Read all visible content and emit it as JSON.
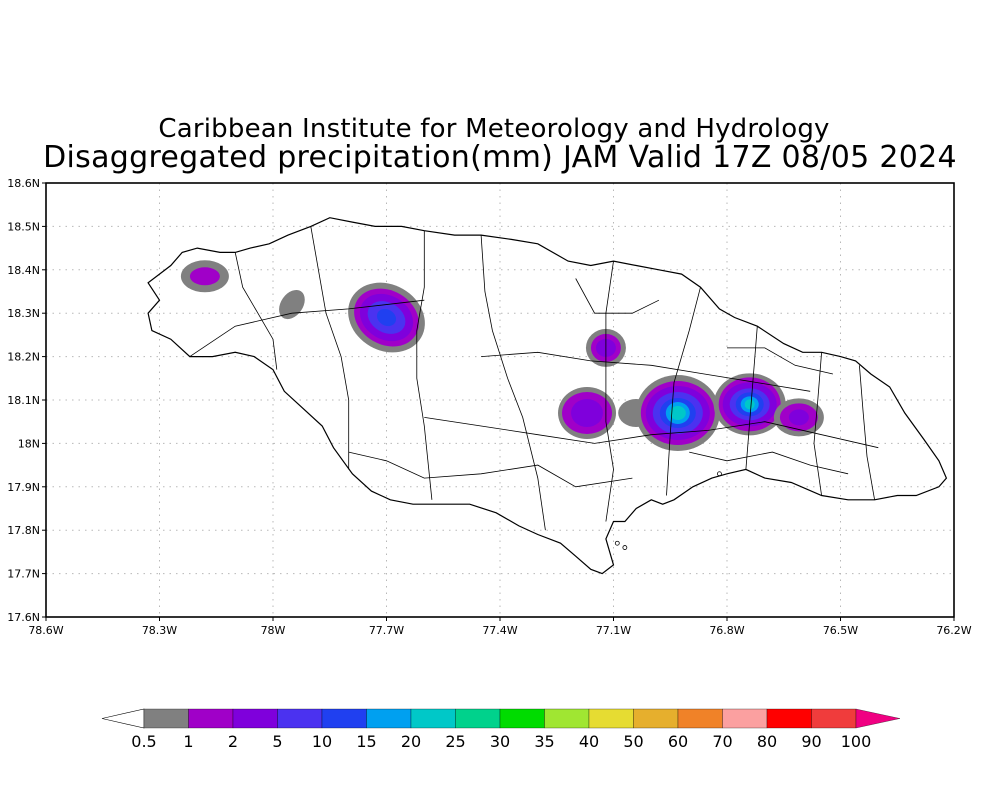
{
  "header": {
    "title": "Caribbean Institute for Meteorology and Hydrology",
    "subtitle": "Disaggregated precipitation(mm) JAM Valid 17Z 08/05 2024"
  },
  "map": {
    "region": "Jamaica",
    "lat_ticks": [
      "18.6N",
      "18.5N",
      "18.4N",
      "18.3N",
      "18.2N",
      "18.1N",
      "18N",
      "17.9N",
      "17.8N",
      "17.7N",
      "17.6N"
    ],
    "lon_ticks": [
      "78.6W",
      "78.3W",
      "78W",
      "77.7W",
      "77.4W",
      "77.1W",
      "76.8W",
      "76.5W",
      "76.2W"
    ],
    "lat_range": [
      17.6,
      18.6
    ],
    "lon_range": [
      -78.6,
      -76.2
    ],
    "grid": true
  },
  "colorbar": {
    "labels": [
      "0.5",
      "1",
      "2",
      "5",
      "10",
      "15",
      "20",
      "25",
      "30",
      "35",
      "40",
      "50",
      "60",
      "70",
      "80",
      "90",
      "100"
    ],
    "colors": [
      "#808080",
      "#a000c8",
      "#7f00dc",
      "#4b32f0",
      "#2040f0",
      "#00a0f0",
      "#00c8c8",
      "#00d28c",
      "#00dc00",
      "#a0e632",
      "#e6dc32",
      "#e6af2d",
      "#f08228",
      "#fba0a0",
      "#ff0000",
      "#f03c3c",
      "#f00082"
    ]
  },
  "precip_cells": [
    {
      "name": "cell-nw-coast",
      "lon": -78.18,
      "lat": 18.385,
      "max_mm": 2
    },
    {
      "name": "cell-nw-small",
      "lon": -77.95,
      "lat": 18.32,
      "max_mm": 0.5
    },
    {
      "name": "cell-north-central",
      "lon": -77.7,
      "lat": 18.29,
      "max_mm": 10
    },
    {
      "name": "cell-central",
      "lon": -77.12,
      "lat": 18.22,
      "max_mm": 5
    },
    {
      "name": "cell-south-central-west",
      "lon": -77.17,
      "lat": 18.07,
      "max_mm": 5
    },
    {
      "name": "cell-south-central",
      "lon": -76.93,
      "lat": 18.07,
      "max_mm": 20
    },
    {
      "name": "cell-east",
      "lon": -76.74,
      "lat": 18.09,
      "max_mm": 20
    },
    {
      "name": "cell-east-tail",
      "lon": -76.61,
      "lat": 18.06,
      "max_mm": 5
    }
  ]
}
